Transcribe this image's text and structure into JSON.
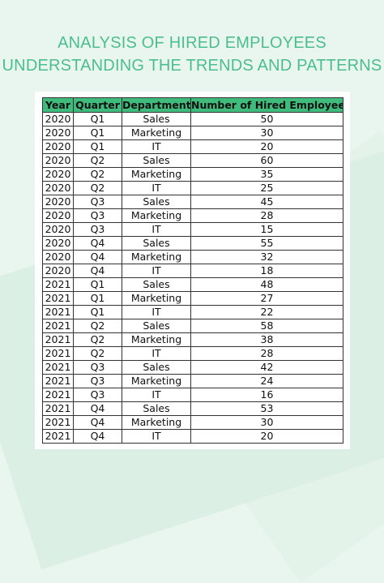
{
  "title": {
    "line1": "ANALYSIS OF HIRED EMPLOYEES",
    "line2": "UNDERSTANDING THE TRENDS AND PATTERNS"
  },
  "colors": {
    "title": "#4cbe8e",
    "header_bg": "#3fbc7c",
    "page_bg": "#e9f6ef"
  },
  "table": {
    "headers": [
      "Year",
      "Quarter",
      "Department",
      "Number of Hired Employees"
    ],
    "rows": [
      [
        "2020",
        "Q1",
        "Sales",
        "50"
      ],
      [
        "2020",
        "Q1",
        "Marketing",
        "30"
      ],
      [
        "2020",
        "Q1",
        "IT",
        "20"
      ],
      [
        "2020",
        "Q2",
        "Sales",
        "60"
      ],
      [
        "2020",
        "Q2",
        "Marketing",
        "35"
      ],
      [
        "2020",
        "Q2",
        "IT",
        "25"
      ],
      [
        "2020",
        "Q3",
        "Sales",
        "45"
      ],
      [
        "2020",
        "Q3",
        "Marketing",
        "28"
      ],
      [
        "2020",
        "Q3",
        "IT",
        "15"
      ],
      [
        "2020",
        "Q4",
        "Sales",
        "55"
      ],
      [
        "2020",
        "Q4",
        "Marketing",
        "32"
      ],
      [
        "2020",
        "Q4",
        "IT",
        "18"
      ],
      [
        "2021",
        "Q1",
        "Sales",
        "48"
      ],
      [
        "2021",
        "Q1",
        "Marketing",
        "27"
      ],
      [
        "2021",
        "Q1",
        "IT",
        "22"
      ],
      [
        "2021",
        "Q2",
        "Sales",
        "58"
      ],
      [
        "2021",
        "Q2",
        "Marketing",
        "38"
      ],
      [
        "2021",
        "Q2",
        "IT",
        "28"
      ],
      [
        "2021",
        "Q3",
        "Sales",
        "42"
      ],
      [
        "2021",
        "Q3",
        "Marketing",
        "24"
      ],
      [
        "2021",
        "Q3",
        "IT",
        "16"
      ],
      [
        "2021",
        "Q4",
        "Sales",
        "53"
      ],
      [
        "2021",
        "Q4",
        "Marketing",
        "30"
      ],
      [
        "2021",
        "Q4",
        "IT",
        "20"
      ]
    ]
  }
}
